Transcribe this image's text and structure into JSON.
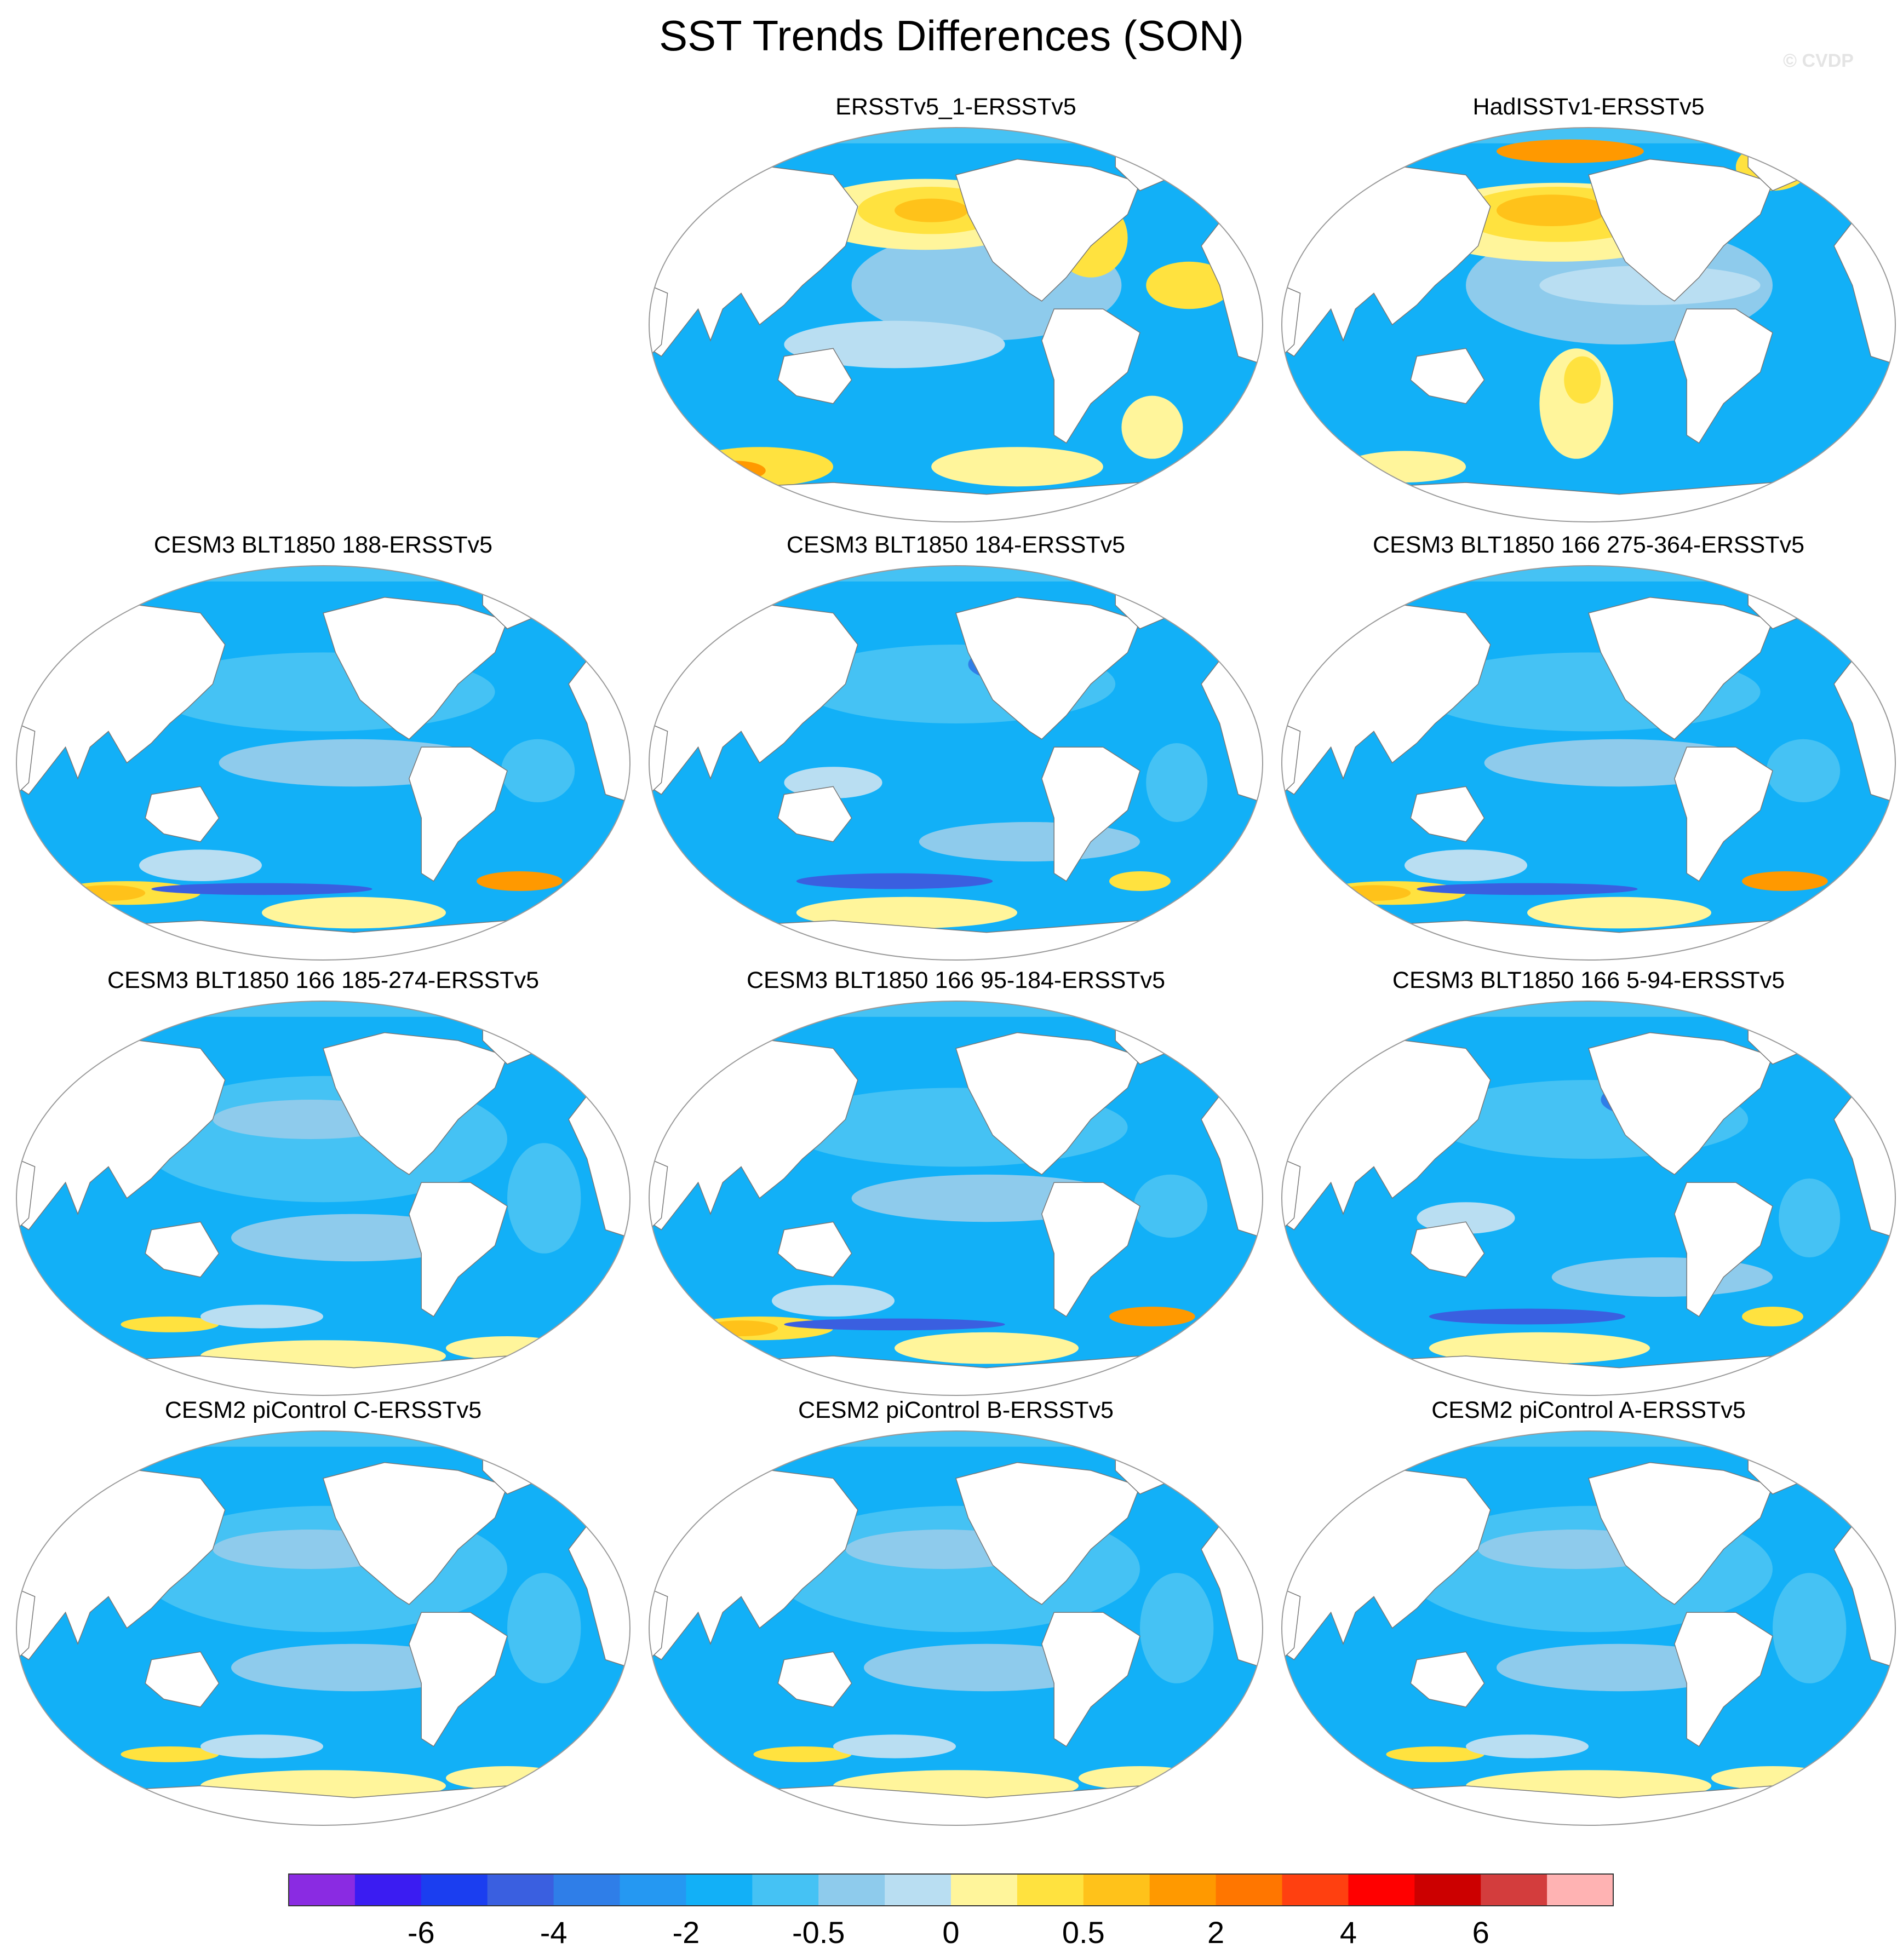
{
  "title": "SST Trends Differences (SON)",
  "watermark": "© CVDP",
  "panels": [
    {
      "title": "ERSSTv5_1-ERSSTv5",
      "pattern": "warm-north"
    },
    {
      "title": "HadISSTv1-ERSSTv5",
      "pattern": "warm-north-strong"
    },
    {
      "title": "CESM3 BLT1850 188-ERSSTv5",
      "pattern": "cool-south-warm"
    },
    {
      "title": "CESM3 BLT1850 184-ERSSTv5",
      "pattern": "cool"
    },
    {
      "title": "CESM3 BLT1850 166 275-364-ERSSTv5",
      "pattern": "cool-south-warm"
    },
    {
      "title": "CESM3 BLT1850 166 185-274-ERSSTv5",
      "pattern": "cool-light"
    },
    {
      "title": "CESM3 BLT1850 166 95-184-ERSSTv5",
      "pattern": "cool-south-warm"
    },
    {
      "title": "CESM3 BLT1850 166 5-94-ERSSTv5",
      "pattern": "cool"
    },
    {
      "title": "CESM2 piControl C-ERSSTv5",
      "pattern": "cool-light"
    },
    {
      "title": "CESM2 piControl B-ERSSTv5",
      "pattern": "cool-light"
    },
    {
      "title": "CESM2 piControl A-ERSSTv5",
      "pattern": "cool-light"
    }
  ],
  "colorbar": {
    "colors": [
      "#8a2be2",
      "#3b1cf2",
      "#1b3ef0",
      "#3a5fe0",
      "#2f7ee8",
      "#2598f2",
      "#12b0f7",
      "#45c2f4",
      "#8ecbec",
      "#b9def2",
      "#fff59b",
      "#ffe23f",
      "#ffc21a",
      "#ff9900",
      "#ff7600",
      "#ff4010",
      "#ff0000",
      "#cc0000",
      "#d33d3d",
      "#ffb3b3"
    ],
    "labels": [
      "-6",
      "-4",
      "-2",
      "-0.5",
      "0",
      "0.5",
      "2",
      "4",
      "6"
    ]
  }
}
